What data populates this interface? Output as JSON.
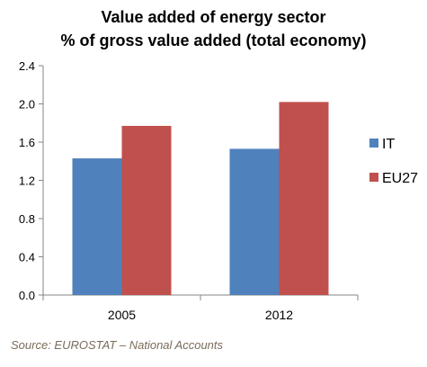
{
  "chart_data": {
    "type": "bar",
    "title": "Value added of energy sector",
    "subtitle": "% of gross value added (total economy)",
    "categories": [
      "2005",
      "2012"
    ],
    "series": [
      {
        "name": "IT",
        "values": [
          1.43,
          1.53
        ],
        "color": "#4f81bd"
      },
      {
        "name": "EU27",
        "values": [
          1.77,
          2.02
        ],
        "color": "#c0504d"
      }
    ],
    "ylim": [
      0,
      2.4
    ],
    "yticks": [
      "0.0",
      "0.4",
      "0.8",
      "1.2",
      "1.6",
      "2.0",
      "2.4"
    ],
    "xlabel": "",
    "ylabel": "",
    "grid": false,
    "legend_position": "right"
  },
  "source": "Source: EUROSTAT – National Accounts"
}
